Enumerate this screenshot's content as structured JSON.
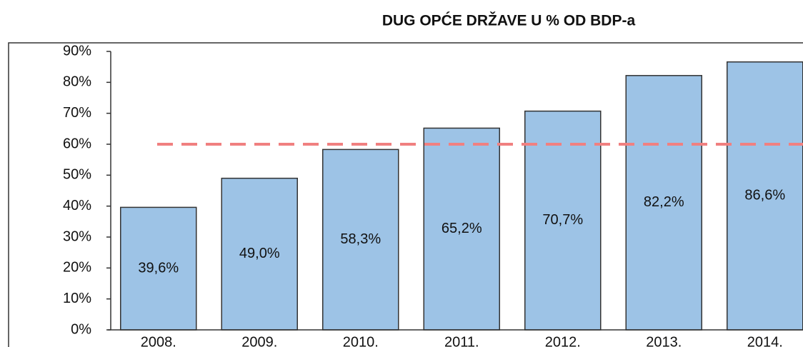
{
  "chart_data": {
    "type": "bar",
    "title": "DUG OPĆE DRŽAVE U % OD BDP-a",
    "categories": [
      "2008.",
      "2009.",
      "2010.",
      "2011.",
      "2012.",
      "2013.",
      "2014."
    ],
    "values": [
      39.6,
      49.0,
      58.3,
      65.2,
      70.7,
      82.2,
      86.6
    ],
    "value_labels": [
      "39,6%",
      "49,0%",
      "58,3%",
      "65,2%",
      "70,7%",
      "82,2%",
      "86,6%"
    ],
    "color": "#9dc3e6",
    "ylim": [
      0,
      90
    ],
    "yticks": [
      {
        "value": 0,
        "label": "0%"
      },
      {
        "value": 10,
        "label": "10%"
      },
      {
        "value": 20,
        "label": "20%"
      },
      {
        "value": 30,
        "label": "30%"
      },
      {
        "value": 40,
        "label": "40%"
      },
      {
        "value": 50,
        "label": "50%"
      },
      {
        "value": 60,
        "label": "60%"
      },
      {
        "value": 70,
        "label": "70%"
      },
      {
        "value": 80,
        "label": "80%"
      },
      {
        "value": 90,
        "label": "90%"
      }
    ],
    "reference_line": {
      "value": 60,
      "color": "#f08080"
    }
  }
}
